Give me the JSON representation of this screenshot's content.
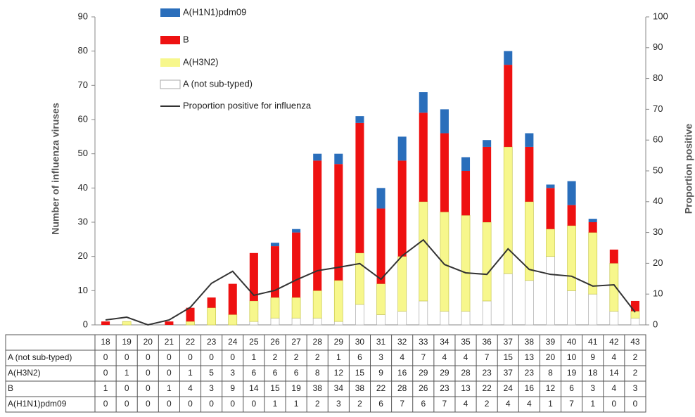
{
  "chart_data": {
    "type": "bar",
    "stacked": true,
    "y_label": "Number of influenza viruses",
    "y2_label": "Proportion positive",
    "categories": [
      "18",
      "19",
      "20",
      "21",
      "22",
      "23",
      "24",
      "25",
      "26",
      "27",
      "28",
      "29",
      "30",
      "31",
      "32",
      "33",
      "34",
      "35",
      "36",
      "37",
      "38",
      "39",
      "40",
      "41",
      "42",
      "43"
    ],
    "series": [
      {
        "name": "A (not sub-typed)",
        "color": "#ffffff",
        "values": [
          0,
          0,
          0,
          0,
          0,
          0,
          0,
          1,
          2,
          2,
          2,
          1,
          6,
          3,
          4,
          7,
          4,
          4,
          7,
          15,
          13,
          20,
          10,
          9,
          4,
          2
        ]
      },
      {
        "name": "A(H3N2)",
        "color": "#f7f78c",
        "values": [
          0,
          1,
          0,
          0,
          1,
          5,
          3,
          6,
          6,
          6,
          8,
          12,
          15,
          9,
          16,
          29,
          29,
          28,
          23,
          37,
          23,
          8,
          19,
          18,
          14,
          2
        ]
      },
      {
        "name": "B",
        "color": "#ee1111",
        "values": [
          1,
          0,
          0,
          1,
          4,
          3,
          9,
          14,
          15,
          19,
          38,
          34,
          38,
          22,
          28,
          26,
          23,
          13,
          22,
          24,
          16,
          12,
          6,
          3,
          4,
          3
        ]
      },
      {
        "name": "A(H1N1)pdm09",
        "color": "#2a6ebb",
        "values": [
          0,
          0,
          0,
          0,
          0,
          0,
          0,
          0,
          1,
          1,
          2,
          3,
          2,
          6,
          7,
          6,
          7,
          4,
          2,
          4,
          4,
          1,
          7,
          1,
          0,
          0
        ]
      },
      {
        "name": "Proportion positive for influenza",
        "color": "#333333",
        "type": "line",
        "axis": "y2",
        "values": [
          1.6,
          2.5,
          0,
          1.6,
          5.7,
          13.5,
          17.4,
          9.6,
          11.2,
          14.6,
          17.6,
          18.7,
          19.9,
          14.8,
          22.4,
          27.6,
          19.6,
          16.9,
          16.4,
          24.7,
          18,
          16.4,
          15.8,
          12.6,
          13,
          4.1
        ]
      }
    ],
    "ylim": [
      0,
      90
    ],
    "yticks": [
      0,
      10,
      20,
      30,
      40,
      50,
      60,
      70,
      80,
      90
    ],
    "y2lim": [
      0,
      100
    ],
    "y2ticks": [
      0,
      10,
      20,
      30,
      40,
      50,
      60,
      70,
      80,
      90,
      100
    ],
    "legend": "top-left"
  }
}
